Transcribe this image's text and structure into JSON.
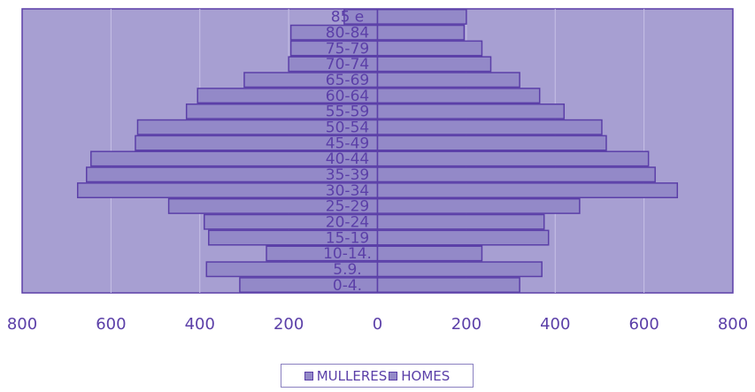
{
  "chart_data": {
    "type": "bar",
    "orientation": "horizontal",
    "subtype": "population-pyramid",
    "categories": [
      "85 e",
      "80-84",
      "75-79",
      "70-74",
      "65-69",
      "60-64",
      "55-59",
      "50-54",
      "45-49",
      "40-44",
      "35-39",
      "30-34",
      "25-29",
      "20-24",
      "15-19",
      "10-14.",
      "5.9.",
      "0-4."
    ],
    "series": [
      {
        "name": "MULLERES",
        "side": "left",
        "values": [
          75,
          195,
          195,
          200,
          300,
          405,
          430,
          540,
          545,
          645,
          655,
          675,
          470,
          390,
          380,
          250,
          385,
          310
        ]
      },
      {
        "name": "HOMES",
        "side": "right",
        "values": [
          200,
          195,
          235,
          255,
          320,
          365,
          420,
          505,
          515,
          610,
          625,
          675,
          455,
          375,
          385,
          235,
          370,
          320
        ]
      }
    ],
    "x_ticks": [
      "800",
      "600",
      "400",
      "200",
      "0",
      "200",
      "400",
      "600",
      "800"
    ],
    "xlim": [
      -800,
      800
    ],
    "grid": true,
    "legend_position": "bottom-center",
    "colors": {
      "plot_bg": "#a79fd2",
      "bar_fill": "#9389c8",
      "bar_stroke": "#5b3fa8",
      "grid": "#c7c0e6",
      "text": "#5b3fa8"
    }
  },
  "legend": {
    "mulleres": "MULLERES",
    "homes": "HOMES"
  }
}
